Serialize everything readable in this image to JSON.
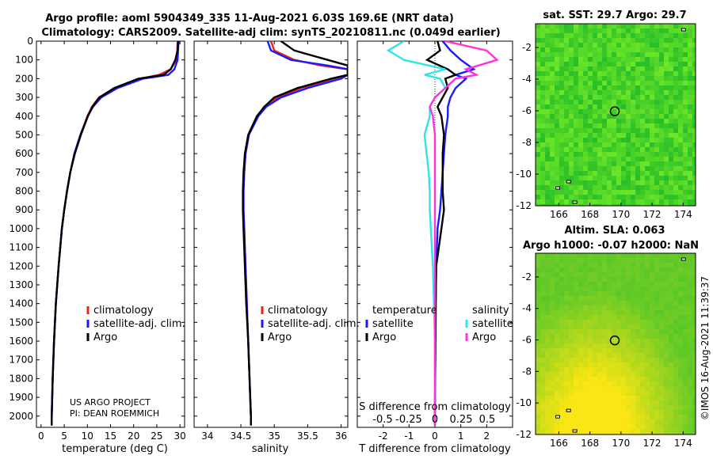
{
  "header": {
    "title_line1": "Argo profile: aoml 5904349_335 11-Aug-2021 6.03S 169.6E (NRT data)",
    "title_line2": "Climatology: CARS2009. Satellite-adj clim: synTS_20210811.nc (0.049d earlier)"
  },
  "credit": "©IMOS 16-Aug-2021 11:39:37",
  "colors": {
    "climatology": "#e8231e",
    "satellite": "#1a1aff",
    "argo": "#000000",
    "s_satellite": "#2ee6e6",
    "s_argo": "#ff33dd"
  },
  "chart_data": [
    {
      "type": "line",
      "id": "temperature",
      "xlabel": "temperature (deg C)",
      "xlim": [
        -1,
        31
      ],
      "xticks": [
        0,
        5,
        10,
        15,
        20,
        25,
        30
      ],
      "xtick_labels": [
        "0",
        "5",
        "10",
        "15",
        "20",
        "25",
        "30"
      ],
      "ylim": [
        2060,
        0
      ],
      "yticks": [
        0,
        100,
        200,
        300,
        400,
        500,
        600,
        700,
        800,
        900,
        1000,
        1100,
        1200,
        1300,
        1400,
        1500,
        1600,
        1700,
        1800,
        1900,
        2000
      ],
      "ytick_labels": [
        "0",
        "100",
        "200",
        "300",
        "400",
        "500",
        "600",
        "700",
        "800",
        "900",
        "1000",
        "1100",
        "1200",
        "1300",
        "1400",
        "1500",
        "1600",
        "1700",
        "1800",
        "1900",
        "2000"
      ],
      "legend": [
        "climatology",
        "satellite-adj. clim.",
        "Argo"
      ],
      "annotation": [
        "US ARGO PROJECT",
        "PI: DEAN ROEMMICH"
      ],
      "depth": [
        0,
        50,
        100,
        150,
        180,
        200,
        250,
        300,
        350,
        400,
        500,
        600,
        700,
        800,
        900,
        1000,
        1200,
        1400,
        1600,
        1800,
        2000,
        2050
      ],
      "series": [
        {
          "name": "climatology",
          "values": [
            29.5,
            29.4,
            29.2,
            28.0,
            25.5,
            21.5,
            16.0,
            12.5,
            11.0,
            10.0,
            8.5,
            7.2,
            6.3,
            5.6,
            5.0,
            4.5,
            3.8,
            3.2,
            2.8,
            2.5,
            2.3,
            2.3
          ]
        },
        {
          "name": "satellite-adj. clim.",
          "values": [
            29.7,
            29.6,
            29.5,
            28.8,
            27.5,
            22.0,
            16.5,
            13.0,
            11.2,
            10.1,
            8.5,
            7.2,
            6.3,
            5.6,
            5.0,
            4.5,
            3.8,
            3.2,
            2.8,
            2.5,
            2.3,
            2.3
          ]
        },
        {
          "name": "Argo",
          "values": [
            29.6,
            29.5,
            29.0,
            28.0,
            26.5,
            21.0,
            15.8,
            12.6,
            11.1,
            10.1,
            8.6,
            7.3,
            6.3,
            5.6,
            5.0,
            4.5,
            3.8,
            3.2,
            2.8,
            2.5,
            2.3,
            2.3
          ]
        }
      ]
    },
    {
      "type": "line",
      "id": "salinity",
      "xlabel": "salinity",
      "xlim": [
        33.8,
        36.1
      ],
      "xticks": [
        34,
        34.5,
        35,
        35.5,
        36
      ],
      "xtick_labels": [
        "34",
        "34.5",
        "35",
        "35.5",
        "36"
      ],
      "legend": [
        "climatology",
        "satellite-adj. clim.",
        "Argo"
      ],
      "depth": [
        0,
        50,
        100,
        130,
        150,
        180,
        200,
        250,
        300,
        350,
        400,
        500,
        600,
        700,
        800,
        900,
        1000,
        1200,
        1400,
        1600,
        1800,
        2000,
        2050
      ],
      "series": [
        {
          "name": "climatology",
          "values": [
            34.95,
            35.0,
            35.3,
            35.7,
            36.1,
            36.1,
            35.9,
            35.4,
            35.05,
            34.85,
            34.75,
            34.62,
            34.57,
            34.55,
            34.54,
            34.54,
            34.55,
            34.57,
            34.59,
            34.61,
            34.63,
            34.65,
            34.65
          ]
        },
        {
          "name": "satellite-adj. clim.",
          "values": [
            34.9,
            34.95,
            35.25,
            35.8,
            36.1,
            36.1,
            36.0,
            35.5,
            35.1,
            34.88,
            34.76,
            34.62,
            34.57,
            34.55,
            34.54,
            34.54,
            34.55,
            34.57,
            34.59,
            34.61,
            34.63,
            34.65,
            34.65
          ]
        },
        {
          "name": "Argo",
          "values": [
            35.1,
            35.3,
            35.8,
            36.1,
            36.1,
            36.1,
            35.85,
            35.35,
            35.0,
            34.85,
            34.74,
            34.61,
            34.56,
            34.54,
            34.53,
            34.53,
            34.54,
            34.56,
            34.58,
            34.61,
            34.63,
            34.65,
            34.65
          ]
        }
      ]
    },
    {
      "type": "line",
      "id": "differences",
      "xlabel": "T difference from climatology",
      "xlim": [
        -3,
        3
      ],
      "xticks": [
        -2,
        -1,
        0,
        1,
        2
      ],
      "xtick_labels": [
        "-2",
        "-1",
        "0",
        "1",
        "2"
      ],
      "s_axis_label": "S difference from climatology",
      "s_tick_labels": [
        "-0.5",
        "-0.25",
        "0",
        "0.25",
        "0.5"
      ],
      "legend_titles": [
        "temperature",
        "salinity"
      ],
      "legend_temperature": [
        "satellite",
        "Argo"
      ],
      "legend_salinity": [
        "satellite",
        "Argo"
      ],
      "depth": [
        0,
        50,
        100,
        150,
        180,
        200,
        250,
        300,
        350,
        400,
        500,
        600,
        700,
        800,
        900,
        1000,
        1200,
        1400,
        1600,
        1800,
        2000,
        2050
      ],
      "series": [
        {
          "name": "T satellite",
          "values": [
            0.3,
            0.6,
            1.0,
            1.5,
            0.8,
            1.2,
            0.8,
            0.6,
            0.5,
            0.5,
            0.4,
            0.35,
            0.3,
            0.25,
            0.2,
            0.1,
            0.05,
            0.03,
            0.02,
            0.01,
            0.0,
            0.0
          ]
        },
        {
          "name": "T Argo",
          "values": [
            0.1,
            0.2,
            -0.3,
            0.5,
            0.8,
            0.4,
            0.5,
            0.3,
            0.1,
            0.25,
            0.35,
            0.3,
            0.3,
            0.3,
            0.35,
            0.25,
            0.05,
            0.03,
            0.02,
            0.01,
            0.0,
            0.0
          ]
        },
        {
          "name": "S satellite",
          "values": [
            -0.3,
            -0.45,
            -0.3,
            0.1,
            -0.1,
            0.05,
            0.1,
            0.0,
            -0.05,
            -0.05,
            -0.1,
            -0.08,
            -0.06,
            -0.05,
            -0.05,
            -0.04,
            -0.02,
            -0.01,
            0.0,
            0.0,
            0.0,
            0.0
          ]
        },
        {
          "name": "S Argo",
          "values": [
            0.1,
            0.5,
            0.6,
            0.3,
            0.4,
            0.2,
            0.1,
            0.0,
            -0.05,
            -0.02,
            0.0,
            0.0,
            0.0,
            0.0,
            0.0,
            0.0,
            0.0,
            0.0,
            0.0,
            0.0,
            0.0,
            0.0
          ]
        }
      ]
    },
    {
      "type": "heatmap",
      "id": "sst_map",
      "title": "sat. SST: 29.7 Argo: 29.7",
      "xlim": [
        164.5,
        174.8
      ],
      "ylim": [
        -12,
        -0.5
      ],
      "xticks": [
        166,
        168,
        170,
        172,
        174
      ],
      "xtick_labels": [
        "166",
        "168",
        "170",
        "172",
        "174"
      ],
      "yticks": [
        -2,
        -4,
        -6,
        -8,
        -10,
        -12
      ],
      "ytick_labels": [
        "-2",
        "-4",
        "-6",
        "-8",
        "-10",
        "-12"
      ],
      "marker": {
        "lon": 169.6,
        "lat": -6.03
      }
    },
    {
      "type": "heatmap",
      "id": "sla_map",
      "title_line1": "Altim. SLA: 0.063",
      "title_line2": "Argo h1000: -0.07 h2000: NaN",
      "xlim": [
        164.5,
        174.8
      ],
      "ylim": [
        -12,
        -0.5
      ],
      "xticks": [
        166,
        168,
        170,
        172,
        174
      ],
      "xtick_labels": [
        "166",
        "168",
        "170",
        "172",
        "174"
      ],
      "yticks": [
        -2,
        -4,
        -6,
        -8,
        -10,
        -12
      ],
      "ytick_labels": [
        "-2",
        "-4",
        "-6",
        "-8",
        "-10",
        "-12"
      ],
      "marker": {
        "lon": 169.6,
        "lat": -6.03
      }
    }
  ]
}
